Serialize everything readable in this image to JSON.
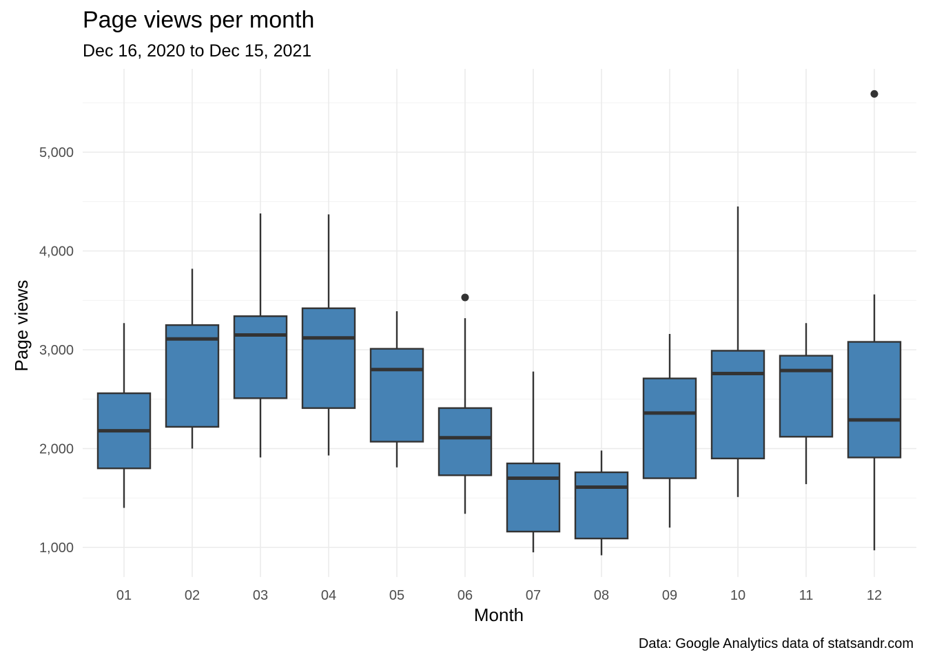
{
  "chart_data": {
    "type": "box",
    "title": "Page views per month",
    "subtitle": "Dec 16, 2020 to Dec 15, 2021",
    "caption": "Data: Google Analytics data of statsandr.com",
    "xlabel": "Month",
    "ylabel": "Page views",
    "categories": [
      "01",
      "02",
      "03",
      "04",
      "05",
      "06",
      "07",
      "08",
      "09",
      "10",
      "11",
      "12"
    ],
    "ylim": [
      700,
      5800
    ],
    "yticks": [
      1000,
      2000,
      3000,
      4000,
      5000
    ],
    "ytick_labels": [
      "1,000",
      "2,000",
      "3,000",
      "4,000",
      "5,000"
    ],
    "box_color": "#4682b4",
    "line_color": "#333333",
    "grid": true,
    "legend": "none",
    "boxes": [
      {
        "category": "01",
        "whisker_low": 1400,
        "q1": 1800,
        "median": 2180,
        "q3": 2560,
        "whisker_high": 3270,
        "outliers": []
      },
      {
        "category": "02",
        "whisker_low": 2000,
        "q1": 2220,
        "median": 3110,
        "q3": 3250,
        "whisker_high": 3820,
        "outliers": []
      },
      {
        "category": "03",
        "whisker_low": 1910,
        "q1": 2510,
        "median": 3150,
        "q3": 3340,
        "whisker_high": 4380,
        "outliers": []
      },
      {
        "category": "04",
        "whisker_low": 1930,
        "q1": 2410,
        "median": 3120,
        "q3": 3420,
        "whisker_high": 4370,
        "outliers": []
      },
      {
        "category": "05",
        "whisker_low": 1810,
        "q1": 2070,
        "median": 2800,
        "q3": 3010,
        "whisker_high": 3390,
        "outliers": []
      },
      {
        "category": "06",
        "whisker_low": 1340,
        "q1": 1730,
        "median": 2110,
        "q3": 2410,
        "whisker_high": 3320,
        "outliers": [
          3530
        ]
      },
      {
        "category": "07",
        "whisker_low": 950,
        "q1": 1160,
        "median": 1700,
        "q3": 1850,
        "whisker_high": 2780,
        "outliers": []
      },
      {
        "category": "08",
        "whisker_low": 920,
        "q1": 1090,
        "median": 1610,
        "q3": 1760,
        "whisker_high": 1980,
        "outliers": []
      },
      {
        "category": "09",
        "whisker_low": 1200,
        "q1": 1700,
        "median": 2360,
        "q3": 2710,
        "whisker_high": 3160,
        "outliers": []
      },
      {
        "category": "10",
        "whisker_low": 1510,
        "q1": 1900,
        "median": 2760,
        "q3": 2990,
        "whisker_high": 4450,
        "outliers": []
      },
      {
        "category": "11",
        "whisker_low": 1640,
        "q1": 2120,
        "median": 2790,
        "q3": 2940,
        "whisker_high": 3270,
        "outliers": []
      },
      {
        "category": "12",
        "whisker_low": 970,
        "q1": 1910,
        "median": 2290,
        "q3": 3080,
        "whisker_high": 3560,
        "outliers": [
          5590
        ]
      }
    ]
  }
}
